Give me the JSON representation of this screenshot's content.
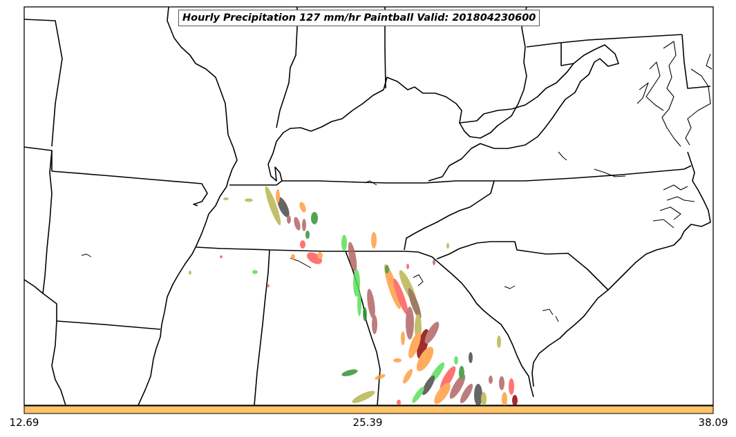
{
  "map": {
    "title": "Hourly Precipitation 127 mm/hr Paintball Valid: 201804230600",
    "colorbar": {
      "color": "#ffc36a",
      "tick_labels": [
        "12.69",
        "25.39",
        "38.09"
      ]
    },
    "paintball_colors": [
      "#ff5555",
      "#ff9a3c",
      "#55dd55",
      "#b06060",
      "#b5b34a",
      "#444444",
      "#2f8f2f",
      "#8b0000"
    ]
  }
}
